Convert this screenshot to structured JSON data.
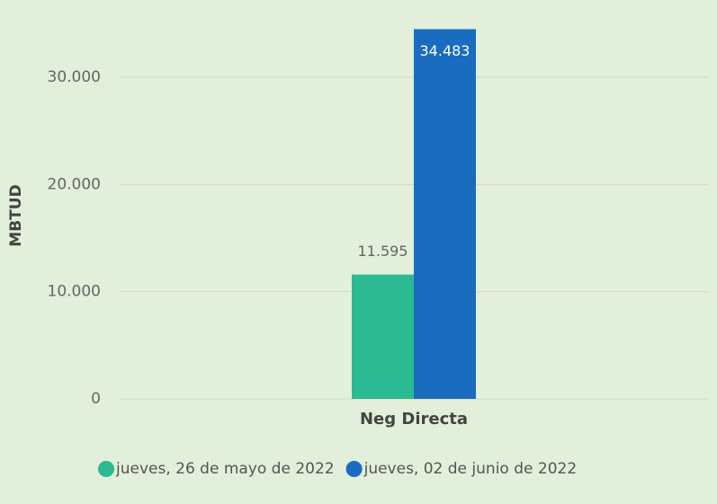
{
  "chart_data": {
    "type": "bar",
    "y_label": "MBTUD",
    "categories": [
      "Neg Directa"
    ],
    "series": [
      {
        "name": "jueves, 26 de mayo de 2022",
        "color": "#2bba91",
        "values": [
          11595
        ],
        "value_labels": [
          "11.595"
        ]
      },
      {
        "name": "jueves, 02 de junio de 2022",
        "color": "#1a6cbf",
        "values": [
          34483
        ],
        "value_labels": [
          "34.483"
        ]
      }
    ],
    "ylim": [
      0,
      35000
    ],
    "yticks": [
      0,
      {
        "value": 10000,
        "label": "10.000"
      },
      {
        "value": 20000,
        "label": "20.000"
      },
      {
        "value": 30000,
        "label": "30.000"
      }
    ],
    "grid": true,
    "legend": "bottom"
  }
}
